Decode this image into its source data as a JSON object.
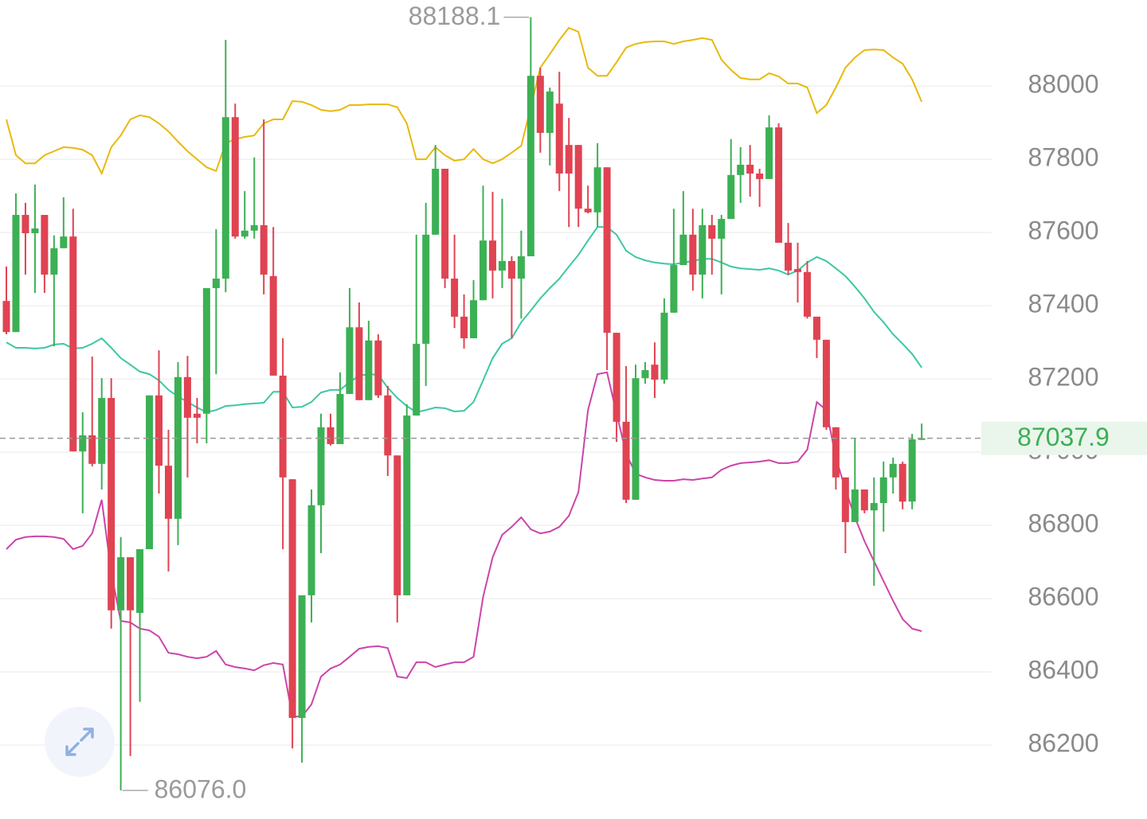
{
  "chart_data": {
    "type": "candlestick",
    "ylim": [
      85998,
      88235
    ],
    "yticks": [
      86200,
      86400,
      86600,
      86800,
      87000,
      87200,
      87400,
      87600,
      87800,
      88000
    ],
    "grid": true,
    "up_color": "#3cb054",
    "down_color": "#e04352",
    "high_label": "88188.1",
    "low_label": "86076.0",
    "ohlc": [
      [
        87413,
        87507,
        87322,
        87328
      ],
      [
        87328,
        87707,
        87328,
        87648
      ],
      [
        87648,
        87681,
        87485,
        87598
      ],
      [
        87598,
        87731,
        87435,
        87611
      ],
      [
        87648,
        87648,
        87435,
        87485
      ],
      [
        87485,
        87592,
        87289,
        87557
      ],
      [
        87557,
        87696,
        87557,
        87589
      ],
      [
        87589,
        87665,
        87002,
        87002
      ],
      [
        87002,
        87109,
        86833,
        87046
      ],
      [
        87046,
        87261,
        86961,
        86968
      ],
      [
        86968,
        87202,
        86898,
        87148
      ],
      [
        87148,
        87202,
        86518,
        86568
      ],
      [
        86568,
        86768,
        86076,
        86713
      ],
      [
        86713,
        86713,
        86170,
        86568
      ],
      [
        86561,
        86735,
        86318,
        86735
      ],
      [
        86735,
        87155,
        86735,
        87155
      ],
      [
        87155,
        87278,
        86887,
        86963
      ],
      [
        86963,
        87061,
        86674,
        86818
      ],
      [
        86818,
        87246,
        86746,
        87205
      ],
      [
        87205,
        87263,
        86931,
        87094
      ],
      [
        87105,
        87148,
        87024,
        87094
      ],
      [
        87105,
        87448,
        87024,
        87448
      ],
      [
        87448,
        87609,
        87213,
        87474
      ],
      [
        87474,
        88126,
        87437,
        87915
      ],
      [
        87915,
        87952,
        87583,
        87589
      ],
      [
        87589,
        87713,
        87583,
        87605
      ],
      [
        87605,
        87805,
        87583,
        87620
      ],
      [
        87620,
        87909,
        87431,
        87485
      ],
      [
        87481,
        87615,
        87209,
        87209
      ],
      [
        87209,
        87311,
        86735,
        86931
      ],
      [
        86926,
        86926,
        86191,
        86274
      ],
      [
        86274,
        86609,
        86152,
        86609
      ],
      [
        86609,
        86898,
        86535,
        86855
      ],
      [
        86855,
        87105,
        86724,
        87068
      ],
      [
        87068,
        87105,
        87018,
        87022
      ],
      [
        87022,
        87218,
        87022,
        87159
      ],
      [
        87159,
        87448,
        87159,
        87341
      ],
      [
        87341,
        87409,
        87142,
        87142
      ],
      [
        87142,
        87359,
        87142,
        87305
      ],
      [
        87305,
        87322,
        87148,
        87155
      ],
      [
        87155,
        87181,
        86935,
        86991
      ],
      [
        86991,
        86991,
        86535,
        86609
      ],
      [
        86609,
        87131,
        86609,
        87100
      ],
      [
        87100,
        87594,
        87100,
        87296
      ],
      [
        87296,
        87681,
        87181,
        87594
      ],
      [
        87594,
        87839,
        87594,
        87774
      ],
      [
        87774,
        87774,
        87448,
        87474
      ],
      [
        87474,
        87594,
        87339,
        87370
      ],
      [
        87370,
        87431,
        87283,
        87311
      ],
      [
        87311,
        87470,
        87311,
        87415
      ],
      [
        87415,
        87728,
        87415,
        87578
      ],
      [
        87578,
        87711,
        87420,
        87496
      ],
      [
        87496,
        87692,
        87448,
        87522
      ],
      [
        87522,
        87535,
        87311,
        87474
      ],
      [
        87474,
        87605,
        87365,
        87535
      ],
      [
        87535,
        88188.1,
        87535,
        88028
      ],
      [
        88028,
        88050,
        87818,
        87872
      ],
      [
        87872,
        87996,
        87783,
        87985
      ],
      [
        87952,
        88039,
        87713,
        87761
      ],
      [
        87839,
        87913,
        87615,
        87761
      ],
      [
        87839,
        87839,
        87615,
        87665
      ],
      [
        87665,
        87728,
        87652,
        87655
      ],
      [
        87655,
        87844,
        87615,
        87778
      ],
      [
        87778,
        87778,
        87224,
        87326
      ],
      [
        87326,
        87326,
        87028,
        87083
      ],
      [
        87083,
        87235,
        86861,
        86870
      ],
      [
        86870,
        87239,
        86870,
        87202
      ],
      [
        87202,
        87246,
        87187,
        87224
      ],
      [
        87239,
        87300,
        87148,
        87198
      ],
      [
        87198,
        87420,
        87187,
        87381
      ],
      [
        87381,
        87665,
        87381,
        87511
      ],
      [
        87511,
        87713,
        87511,
        87594
      ],
      [
        87594,
        87665,
        87441,
        87485
      ],
      [
        87485,
        87665,
        87420,
        87620
      ],
      [
        87620,
        87648,
        87485,
        87583
      ],
      [
        87583,
        87648,
        87431,
        87637
      ],
      [
        87637,
        87855,
        87637,
        87757
      ],
      [
        87757,
        87833,
        87681,
        87785
      ],
      [
        87785,
        87839,
        87698,
        87761
      ],
      [
        87761,
        87774,
        87670,
        87746
      ],
      [
        87746,
        87920,
        87746,
        87887
      ],
      [
        87887,
        87898,
        87572,
        87572
      ],
      [
        87572,
        87626,
        87485,
        87496
      ],
      [
        87500,
        87572,
        87409,
        87492
      ],
      [
        87492,
        87522,
        87365,
        87370
      ],
      [
        87370,
        87370,
        87257,
        87307
      ],
      [
        87307,
        87307,
        87061,
        87068
      ],
      [
        87068,
        87068,
        86898,
        86931
      ],
      [
        86931,
        86931,
        86724,
        86809
      ],
      [
        86809,
        87039,
        86809,
        86898
      ],
      [
        86898,
        86898,
        86833,
        86841
      ],
      [
        86841,
        86931,
        86635,
        86861
      ],
      [
        86861,
        86974,
        86783,
        86931
      ],
      [
        86931,
        86985,
        86887,
        86968
      ],
      [
        86968,
        86974,
        86844,
        86865
      ],
      [
        86865,
        87050,
        86844,
        87035
      ],
      [
        87035,
        87078,
        87033,
        87037.9
      ]
    ],
    "bands": [
      {
        "color": "#e8b90c",
        "values": [
          87909,
          87811,
          87789,
          87789,
          87811,
          87822,
          87833,
          87831,
          87826,
          87811,
          87761,
          87833,
          87865,
          87909,
          87920,
          87915,
          87898,
          87876,
          87848,
          87822,
          87800,
          87778,
          87768,
          87844,
          87855,
          87861,
          87865,
          87898,
          87909,
          87909,
          87959,
          87957,
          87948,
          87935,
          87931,
          87935,
          87948,
          87948,
          87950,
          87950,
          87950,
          87942,
          87898,
          87800,
          87800,
          87833,
          87811,
          87796,
          87800,
          87828,
          87800,
          87789,
          87800,
          87818,
          87837,
          87942,
          88050,
          88087,
          88126,
          88159,
          88148,
          88050,
          88028,
          88028,
          88065,
          88105,
          88115,
          88120,
          88122,
          88122,
          88115,
          88122,
          88126,
          88131,
          88126,
          88072,
          88044,
          88022,
          88018,
          88018,
          88035,
          88026,
          88007,
          88007,
          87996,
          87926,
          87948,
          87996,
          88050,
          88078,
          88098,
          88100,
          88098,
          88078,
          88061,
          88018,
          87957
        ]
      },
      {
        "color": "#3cc7a4",
        "values": [
          87300,
          87285,
          87285,
          87283,
          87285,
          87294,
          87296,
          87283,
          87285,
          87296,
          87311,
          87285,
          87257,
          87239,
          87220,
          87213,
          87196,
          87170,
          87152,
          87137,
          87122,
          87109,
          87115,
          87126,
          87128,
          87131,
          87133,
          87135,
          87165,
          87165,
          87122,
          87124,
          87137,
          87163,
          87170,
          87170,
          87191,
          87209,
          87213,
          87211,
          87176,
          87148,
          87126,
          87109,
          87115,
          87122,
          87120,
          87111,
          87113,
          87137,
          87196,
          87257,
          87296,
          87311,
          87355,
          87387,
          87420,
          87448,
          87474,
          87507,
          87539,
          87578,
          87615,
          87615,
          87594,
          87550,
          87533,
          87524,
          87518,
          87515,
          87513,
          87518,
          87522,
          87528,
          87528,
          87518,
          87507,
          87502,
          87500,
          87498,
          87502,
          87496,
          87485,
          87496,
          87518,
          87533,
          87522,
          87502,
          87481,
          87452,
          87420,
          87383,
          87355,
          87322,
          87296,
          87268,
          87231
        ]
      },
      {
        "color": "#cc44aa",
        "values": [
          86735,
          86761,
          86768,
          86770,
          86770,
          86768,
          86763,
          86735,
          86744,
          86778,
          86870,
          86670,
          86539,
          86535,
          86518,
          86513,
          86496,
          86452,
          86448,
          86441,
          86437,
          86441,
          86457,
          86420,
          86413,
          86409,
          86404,
          86418,
          86424,
          86420,
          86278,
          86278,
          86311,
          86387,
          86409,
          86420,
          86441,
          86463,
          86468,
          86470,
          86465,
          86387,
          86383,
          86426,
          86426,
          86413,
          86420,
          86426,
          86426,
          86441,
          86604,
          86713,
          86774,
          86796,
          86822,
          86789,
          86778,
          86783,
          86796,
          86826,
          86891,
          87115,
          87213,
          87218,
          87105,
          86996,
          86941,
          86931,
          86924,
          86922,
          86922,
          86926,
          86924,
          86928,
          86931,
          86952,
          86963,
          86970,
          86972,
          86974,
          86978,
          86970,
          86970,
          86974,
          87007,
          87137,
          87115,
          86985,
          86898,
          86822,
          86757,
          86702,
          86648,
          86594,
          86544,
          86518,
          86511
        ]
      }
    ]
  }
}
